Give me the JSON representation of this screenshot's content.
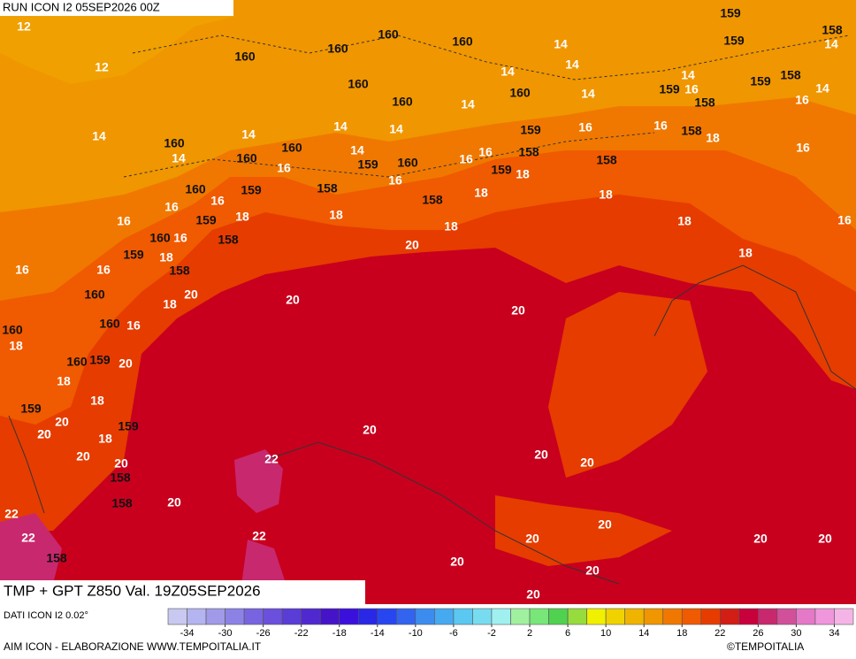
{
  "header": {
    "run": "RUN ICON I2 05SEP2026 00Z",
    "title": "TMP + GPT Z850 Val. 19Z05SEP2026",
    "data_source": "DATI ICON I2 0.02°",
    "credit": "AIM ICON - ELABORAZIONE WWW.TEMPOITALIA.IT",
    "copyright": "©TEMPOITALIA"
  },
  "colorbar": {
    "colors": [
      "#c8c8f0",
      "#b4b4f0",
      "#a09ae8",
      "#8c82e6",
      "#7864e0",
      "#6a50dc",
      "#5a3cd6",
      "#5028d0",
      "#4614c8",
      "#3c10dc",
      "#2828e6",
      "#2846f0",
      "#3264f0",
      "#3c8cf0",
      "#46aaf0",
      "#5ac8f0",
      "#78dcf0",
      "#a0f0f0",
      "#a0f0a0",
      "#78e678",
      "#50d250",
      "#96dc3c",
      "#f0f000",
      "#f0d200",
      "#f0b400",
      "#f09600",
      "#f07800",
      "#f05a00",
      "#e63c00",
      "#d21e14",
      "#c8003c",
      "#c8286e",
      "#d2509a",
      "#e678c8",
      "#f096dc",
      "#f5b4e6"
    ],
    "ticks": [
      -34,
      -30,
      -26,
      -22,
      -18,
      -14,
      -10,
      -6,
      -2,
      2,
      6,
      10,
      14,
      18,
      22,
      26,
      30,
      34
    ]
  },
  "map_labels": [
    12,
    12,
    14,
    16,
    160,
    18,
    18,
    159,
    20,
    20,
    20,
    22,
    22,
    158,
    160,
    160,
    160,
    160,
    159,
    158,
    159,
    14,
    14,
    14,
    14,
    160,
    160,
    160,
    14,
    14,
    14,
    159,
    16,
    158,
    159,
    14,
    16,
    158,
    160,
    14,
    14,
    160,
    160,
    14,
    14,
    14,
    159,
    160,
    16,
    16,
    16,
    159,
    158,
    18,
    159,
    16,
    16,
    158,
    18,
    16,
    158,
    18,
    158,
    18,
    160,
    159,
    158,
    16,
    16,
    16,
    159,
    18,
    18,
    16,
    16,
    18,
    18,
    160,
    16,
    20,
    158,
    159,
    18,
    158,
    16,
    18,
    160,
    20,
    18,
    20,
    20,
    160,
    16,
    160,
    159,
    20,
    18,
    159,
    18,
    20,
    20,
    158,
    22,
    20,
    20,
    158,
    20,
    22,
    20,
    20,
    20,
    20,
    20,
    20,
    20,
    20
  ]
}
